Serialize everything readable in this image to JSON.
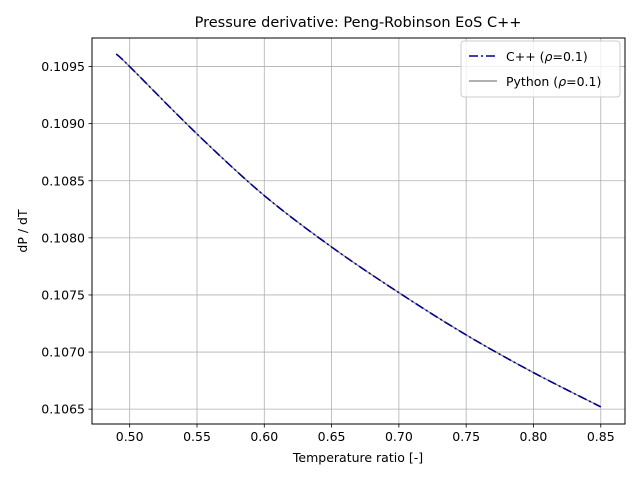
{
  "chart_data": {
    "type": "line",
    "title": "Pressure derivative: Peng-Robinson EoS C++",
    "xlabel": "Temperature ratio [-]",
    "ylabel": "dP / dT",
    "xlim": [
      0.472,
      0.868
    ],
    "ylim": [
      0.10637,
      0.10975
    ],
    "xticks": [
      0.5,
      0.55,
      0.6,
      0.65,
      0.7,
      0.75,
      0.8,
      0.85
    ],
    "xtick_labels": [
      "0.50",
      "0.55",
      "0.60",
      "0.65",
      "0.70",
      "0.75",
      "0.80",
      "0.85"
    ],
    "yticks": [
      0.1065,
      0.107,
      0.1075,
      0.108,
      0.1085,
      0.109,
      0.1095
    ],
    "ytick_labels": [
      "0.1065",
      "0.1070",
      "0.1075",
      "0.1080",
      "0.1085",
      "0.1090",
      "0.1095"
    ],
    "grid": true,
    "legend_position": "top-right",
    "series": [
      {
        "name": "C++ (ρ=0.1)",
        "legend_label_prefix": "C++ (",
        "legend_label_rho": "ρ",
        "legend_label_suffix": "=0.1)",
        "color": "#00008b",
        "style": "dashdot",
        "x": [
          0.49,
          0.5,
          0.55,
          0.6,
          0.65,
          0.7,
          0.75,
          0.8,
          0.85
        ],
        "y": [
          0.10961,
          0.1095,
          0.10891,
          0.10837,
          0.10792,
          0.10752,
          0.10715,
          0.10682,
          0.10652
        ]
      },
      {
        "name": "Python (ρ=0.1)",
        "legend_label_prefix": "Python (",
        "legend_label_rho": "ρ",
        "legend_label_suffix": "=0.1)",
        "color": "#808080",
        "style": "solid",
        "x": [
          0.49,
          0.5,
          0.55,
          0.6,
          0.65,
          0.7,
          0.75,
          0.8,
          0.85
        ],
        "y": [
          0.10961,
          0.1095,
          0.10891,
          0.10837,
          0.10792,
          0.10752,
          0.10715,
          0.10682,
          0.10652
        ]
      }
    ]
  }
}
